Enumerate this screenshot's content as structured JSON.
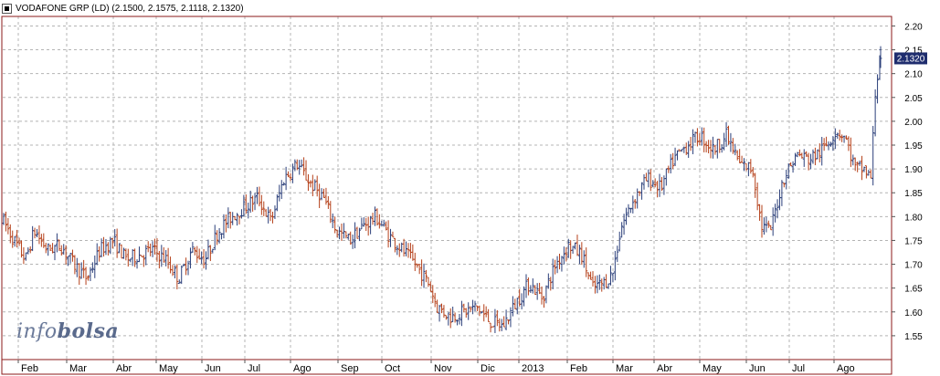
{
  "header": {
    "title": "VODAFONE GRP (LD) (2.1500, 2.1575, 2.1118, 2.1320)"
  },
  "logo": {
    "part1": "info",
    "part2": "bolsa"
  },
  "last_price_label": "2.1320",
  "colors": {
    "up": "#2b3f7a",
    "down": "#b5401a",
    "grid": "#b4b4b4",
    "frame": "#8b1a1a",
    "price_tag_bg": "#1f2d6e"
  },
  "chart_data": {
    "type": "ohlc",
    "title": "VODAFONE GRP (LD) (2.1500, 2.1575, 2.1118, 2.1320)",
    "ylim": [
      1.5,
      2.22
    ],
    "y_ticks": [
      "2.20",
      "2.15",
      "2.10",
      "2.05",
      "2.00",
      "1.95",
      "1.90",
      "1.85",
      "1.80",
      "1.75",
      "1.70",
      "1.65",
      "1.60",
      "1.55"
    ],
    "x_month_labels": [
      "Feb",
      "Mar",
      "Abr",
      "May",
      "Jun",
      "Jul",
      "Ago",
      "Sep",
      "Oct",
      "Nov",
      "Dic",
      "2013",
      "Feb",
      "Mar",
      "Abr",
      "May",
      "Jun",
      "Jul",
      "Ago"
    ],
    "grid": true,
    "last_ohlc": {
      "open": 2.15,
      "high": 2.1575,
      "low": 2.1118,
      "close": 2.132
    },
    "close_path": [
      {
        "x": 0,
        "y": 1.79
      },
      {
        "x": 0.012,
        "y": 1.75
      },
      {
        "x": 0.025,
        "y": 1.71
      },
      {
        "x": 0.035,
        "y": 1.77
      },
      {
        "x": 0.05,
        "y": 1.73
      },
      {
        "x": 0.065,
        "y": 1.74
      },
      {
        "x": 0.08,
        "y": 1.7
      },
      {
        "x": 0.095,
        "y": 1.67
      },
      {
        "x": 0.11,
        "y": 1.73
      },
      {
        "x": 0.125,
        "y": 1.75
      },
      {
        "x": 0.14,
        "y": 1.71
      },
      {
        "x": 0.155,
        "y": 1.72
      },
      {
        "x": 0.17,
        "y": 1.73
      },
      {
        "x": 0.185,
        "y": 1.71
      },
      {
        "x": 0.2,
        "y": 1.67
      },
      {
        "x": 0.215,
        "y": 1.73
      },
      {
        "x": 0.23,
        "y": 1.71
      },
      {
        "x": 0.245,
        "y": 1.77
      },
      {
        "x": 0.26,
        "y": 1.8
      },
      {
        "x": 0.275,
        "y": 1.82
      },
      {
        "x": 0.29,
        "y": 1.84
      },
      {
        "x": 0.305,
        "y": 1.79
      },
      {
        "x": 0.32,
        "y": 1.88
      },
      {
        "x": 0.335,
        "y": 1.91
      },
      {
        "x": 0.35,
        "y": 1.87
      },
      {
        "x": 0.365,
        "y": 1.84
      },
      {
        "x": 0.38,
        "y": 1.77
      },
      {
        "x": 0.395,
        "y": 1.75
      },
      {
        "x": 0.41,
        "y": 1.78
      },
      {
        "x": 0.425,
        "y": 1.8
      },
      {
        "x": 0.44,
        "y": 1.76
      },
      {
        "x": 0.455,
        "y": 1.73
      },
      {
        "x": 0.47,
        "y": 1.7
      },
      {
        "x": 0.485,
        "y": 1.66
      },
      {
        "x": 0.495,
        "y": 1.61
      },
      {
        "x": 0.51,
        "y": 1.59
      },
      {
        "x": 0.525,
        "y": 1.6
      },
      {
        "x": 0.54,
        "y": 1.61
      },
      {
        "x": 0.555,
        "y": 1.58
      },
      {
        "x": 0.57,
        "y": 1.57
      },
      {
        "x": 0.585,
        "y": 1.62
      },
      {
        "x": 0.6,
        "y": 1.66
      },
      {
        "x": 0.615,
        "y": 1.63
      },
      {
        "x": 0.63,
        "y": 1.7
      },
      {
        "x": 0.645,
        "y": 1.74
      },
      {
        "x": 0.66,
        "y": 1.72
      },
      {
        "x": 0.672,
        "y": 1.65
      },
      {
        "x": 0.685,
        "y": 1.66
      },
      {
        "x": 0.695,
        "y": 1.68
      },
      {
        "x": 0.705,
        "y": 1.78
      },
      {
        "x": 0.72,
        "y": 1.84
      },
      {
        "x": 0.735,
        "y": 1.88
      },
      {
        "x": 0.75,
        "y": 1.86
      },
      {
        "x": 0.765,
        "y": 1.92
      },
      {
        "x": 0.78,
        "y": 1.95
      },
      {
        "x": 0.795,
        "y": 1.97
      },
      {
        "x": 0.81,
        "y": 1.94
      },
      {
        "x": 0.825,
        "y": 1.97
      },
      {
        "x": 0.84,
        "y": 1.91
      },
      {
        "x": 0.855,
        "y": 1.9
      },
      {
        "x": 0.865,
        "y": 1.78
      },
      {
        "x": 0.875,
        "y": 1.77
      },
      {
        "x": 0.89,
        "y": 1.88
      },
      {
        "x": 0.905,
        "y": 1.93
      },
      {
        "x": 0.92,
        "y": 1.92
      },
      {
        "x": 0.935,
        "y": 1.94
      },
      {
        "x": 0.95,
        "y": 1.98
      },
      {
        "x": 0.96,
        "y": 1.97
      },
      {
        "x": 0.972,
        "y": 1.9
      },
      {
        "x": 0.982,
        "y": 1.9
      },
      {
        "x": 0.99,
        "y": 1.88
      },
      {
        "x": 0.995,
        "y": 2.06
      },
      {
        "x": 1.0,
        "y": 2.132
      }
    ]
  }
}
